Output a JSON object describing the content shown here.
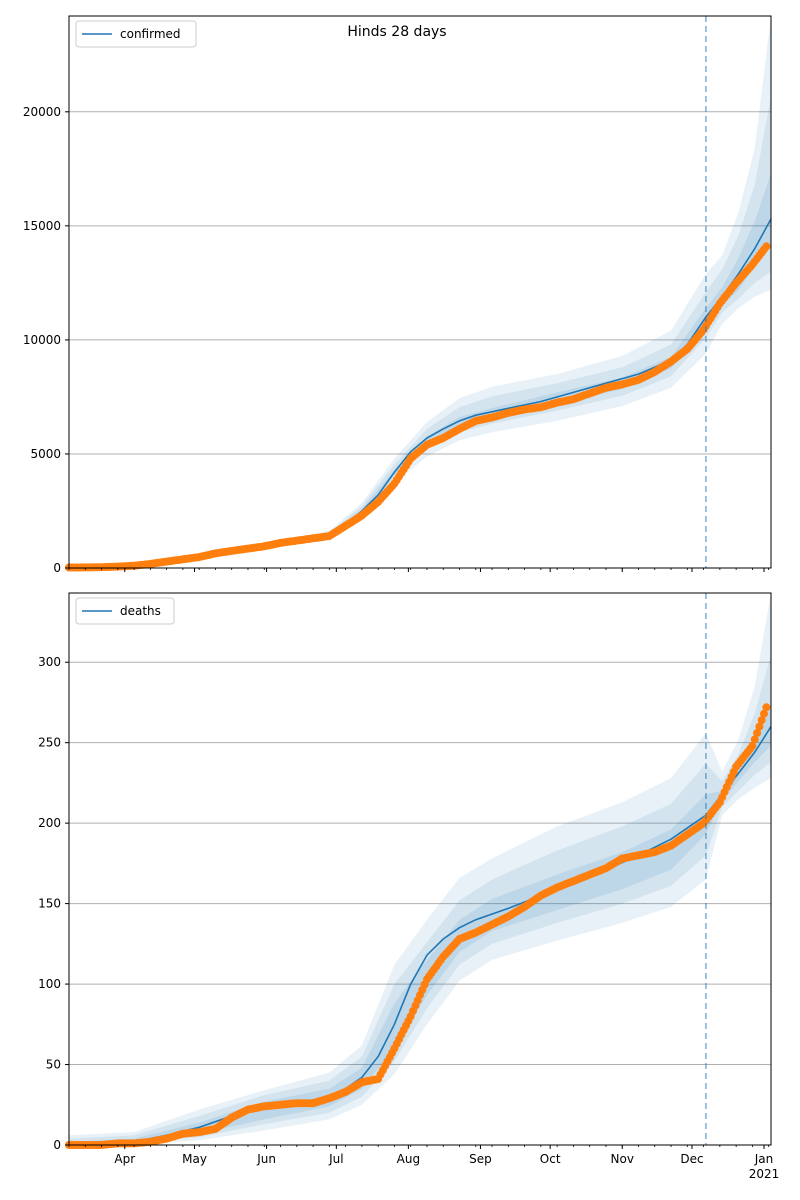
{
  "title": "Hinds 28 days",
  "forecast_start": "2020-12-07",
  "colors": {
    "model": "#1f77b4",
    "observed": "#ff7f0e",
    "band": "#1f77b4",
    "grid": "#b0b0b0"
  },
  "chart_data": [
    {
      "type": "line",
      "name": "confirmed",
      "legend": "confirmed",
      "legend_position": "top-left",
      "grid": "y",
      "x_range": [
        "2020-03-08",
        "2021-01-04"
      ],
      "ylim": [
        0,
        24200
      ],
      "yticks": [
        0,
        5000,
        10000,
        15000,
        20000
      ],
      "model_line": {
        "x": [
          "2020-03-08",
          "2020-03-22",
          "2020-04-05",
          "2020-04-19",
          "2020-05-03",
          "2020-05-17",
          "2020-05-31",
          "2020-06-14",
          "2020-06-28",
          "2020-07-05",
          "2020-07-12",
          "2020-07-19",
          "2020-07-26",
          "2020-08-02",
          "2020-08-09",
          "2020-08-16",
          "2020-08-23",
          "2020-08-30",
          "2020-09-13",
          "2020-09-27",
          "2020-10-11",
          "2020-10-25",
          "2020-11-08",
          "2020-11-22",
          "2020-11-29",
          "2020-12-07",
          "2020-12-14",
          "2020-12-21",
          "2020-12-28",
          "2021-01-04"
        ],
        "y": [
          20,
          30,
          80,
          260,
          480,
          700,
          920,
          1150,
          1450,
          1900,
          2500,
          3200,
          4200,
          5100,
          5700,
          6100,
          6450,
          6700,
          7000,
          7300,
          7700,
          8100,
          8500,
          9100,
          9800,
          11000,
          11900,
          12900,
          14000,
          15300
        ]
      },
      "bands": {
        "x": [
          "2020-03-08",
          "2020-04-05",
          "2020-05-03",
          "2020-05-31",
          "2020-06-28",
          "2020-07-12",
          "2020-07-26",
          "2020-08-09",
          "2020-08-23",
          "2020-09-06",
          "2020-10-04",
          "2020-11-01",
          "2020-11-22",
          "2020-12-07",
          "2020-12-14",
          "2020-12-21",
          "2020-12-28",
          "2021-01-04"
        ],
        "lower95": [
          0,
          60,
          420,
          830,
          1300,
          2200,
          3700,
          4900,
          5600,
          5950,
          6450,
          7100,
          7900,
          9400,
          10700,
          11400,
          11900,
          12200
        ],
        "lower80": [
          5,
          70,
          450,
          870,
          1360,
          2320,
          3960,
          5200,
          5950,
          6330,
          6900,
          7550,
          8400,
          10100,
          11200,
          11800,
          12500,
          13000
        ],
        "lower50": [
          12,
          75,
          465,
          900,
          1410,
          2420,
          4080,
          5420,
          6180,
          6590,
          7200,
          7850,
          8750,
          10600,
          11500,
          12200,
          13200,
          14200
        ],
        "upper50": [
          28,
          85,
          495,
          940,
          1490,
          2580,
          4320,
          5780,
          6620,
          7010,
          7700,
          8350,
          9250,
          11400,
          12300,
          13600,
          15200,
          17300
        ],
        "upper80": [
          40,
          95,
          515,
          980,
          1560,
          2720,
          4540,
          6100,
          7050,
          7530,
          8100,
          8800,
          9800,
          12100,
          13100,
          14600,
          16800,
          20700
        ],
        "upper95": [
          50,
          100,
          540,
          1020,
          1620,
          2860,
          4800,
          6400,
          7450,
          7950,
          8500,
          9300,
          10400,
          12900,
          13700,
          15600,
          18400,
          24200
        ]
      },
      "observed": {
        "x": [
          "2020-03-08",
          "2020-03-15",
          "2020-03-22",
          "2020-03-29",
          "2020-04-05",
          "2020-04-12",
          "2020-04-19",
          "2020-04-26",
          "2020-05-03",
          "2020-05-10",
          "2020-05-17",
          "2020-05-24",
          "2020-05-31",
          "2020-06-07",
          "2020-06-14",
          "2020-06-21",
          "2020-06-28",
          "2020-07-05",
          "2020-07-12",
          "2020-07-19",
          "2020-07-26",
          "2020-08-02",
          "2020-08-09",
          "2020-08-16",
          "2020-08-23",
          "2020-08-30",
          "2020-09-06",
          "2020-09-13",
          "2020-09-20",
          "2020-09-27",
          "2020-10-04",
          "2020-10-11",
          "2020-10-18",
          "2020-10-25",
          "2020-11-01",
          "2020-11-08",
          "2020-11-15",
          "2020-11-22",
          "2020-11-29",
          "2020-12-06",
          "2020-12-13",
          "2020-12-20",
          "2020-12-27",
          "2021-01-02"
        ],
        "y": [
          20,
          25,
          35,
          60,
          100,
          180,
          280,
          380,
          480,
          640,
          750,
          850,
          950,
          1100,
          1200,
          1300,
          1400,
          1850,
          2300,
          2900,
          3700,
          4800,
          5400,
          5700,
          6100,
          6450,
          6600,
          6800,
          6950,
          7050,
          7250,
          7400,
          7650,
          7900,
          8050,
          8250,
          8600,
          9050,
          9600,
          10450,
          11600,
          12500,
          13300,
          14100
        ]
      }
    },
    {
      "type": "line",
      "name": "deaths",
      "legend": "deaths",
      "legend_position": "top-left",
      "grid": "y",
      "x_range": [
        "2020-03-08",
        "2021-01-04"
      ],
      "ylim": [
        0,
        343
      ],
      "yticks": [
        0,
        50,
        100,
        150,
        200,
        250,
        300
      ],
      "xticks": [
        {
          "date": "2020-04-01",
          "label": "Apr"
        },
        {
          "date": "2020-05-01",
          "label": "May"
        },
        {
          "date": "2020-06-01",
          "label": "Jun"
        },
        {
          "date": "2020-07-01",
          "label": "Jul"
        },
        {
          "date": "2020-08-01",
          "label": "Aug"
        },
        {
          "date": "2020-09-01",
          "label": "Sep"
        },
        {
          "date": "2020-10-01",
          "label": "Oct"
        },
        {
          "date": "2020-11-01",
          "label": "Nov"
        },
        {
          "date": "2020-12-01",
          "label": "Dec"
        },
        {
          "date": "2021-01-01",
          "label": "Jan"
        }
      ],
      "year_label": "2021",
      "model_line": {
        "x": [
          "2020-03-08",
          "2020-03-22",
          "2020-04-05",
          "2020-04-19",
          "2020-05-03",
          "2020-05-17",
          "2020-05-31",
          "2020-06-14",
          "2020-06-28",
          "2020-07-05",
          "2020-07-12",
          "2020-07-19",
          "2020-07-26",
          "2020-08-02",
          "2020-08-09",
          "2020-08-16",
          "2020-08-23",
          "2020-08-30",
          "2020-09-13",
          "2020-09-27",
          "2020-10-11",
          "2020-10-25",
          "2020-11-08",
          "2020-11-22",
          "2020-12-07",
          "2020-12-14",
          "2020-12-21",
          "2020-12-28",
          "2021-01-04"
        ],
        "y": [
          0,
          0.5,
          2,
          6,
          11,
          18,
          23,
          26,
          30,
          35,
          42,
          55,
          75,
          100,
          118,
          128,
          135,
          140,
          147,
          155,
          163,
          171,
          180,
          190,
          205,
          218,
          231,
          244,
          260
        ]
      },
      "bands": {
        "x": [
          "2020-03-08",
          "2020-04-05",
          "2020-05-03",
          "2020-05-31",
          "2020-06-28",
          "2020-07-12",
          "2020-07-26",
          "2020-08-09",
          "2020-08-23",
          "2020-09-06",
          "2020-10-04",
          "2020-11-01",
          "2020-11-22",
          "2020-12-07",
          "2020-12-14",
          "2020-12-21",
          "2020-12-28",
          "2021-01-04"
        ],
        "lower95": [
          0,
          0,
          3,
          9,
          16,
          25,
          44,
          75,
          102,
          115,
          127,
          138,
          148,
          165,
          205,
          215,
          222,
          228
        ],
        "lower80": [
          0,
          1,
          5,
          13,
          20,
          30,
          52,
          85,
          112,
          125,
          138,
          150,
          161,
          180,
          210,
          220,
          230,
          238
        ],
        "lower50": [
          0,
          1.5,
          7,
          16,
          24,
          35,
          60,
          93,
          120,
          133,
          146,
          159,
          171,
          193,
          214,
          226,
          238,
          248
        ],
        "upper50": [
          2,
          4,
          14,
          27,
          35,
          48,
          88,
          115,
          140,
          153,
          168,
          182,
          196,
          218,
          220,
          234,
          252,
          272
        ],
        "upper80": [
          4,
          6,
          18,
          31,
          40,
          55,
          100,
          126,
          152,
          165,
          183,
          198,
          212,
          237,
          226,
          243,
          268,
          305
        ],
        "upper95": [
          6,
          8,
          22,
          34,
          45,
          62,
          112,
          140,
          166,
          178,
          198,
          213,
          228,
          256,
          232,
          252,
          285,
          343
        ]
      },
      "observed": {
        "x": [
          "2020-03-08",
          "2020-03-15",
          "2020-03-22",
          "2020-03-29",
          "2020-04-05",
          "2020-04-12",
          "2020-04-19",
          "2020-04-26",
          "2020-05-03",
          "2020-05-10",
          "2020-05-17",
          "2020-05-24",
          "2020-05-31",
          "2020-06-07",
          "2020-06-14",
          "2020-06-21",
          "2020-06-28",
          "2020-07-05",
          "2020-07-12",
          "2020-07-19",
          "2020-07-26",
          "2020-08-02",
          "2020-08-09",
          "2020-08-16",
          "2020-08-23",
          "2020-08-30",
          "2020-09-06",
          "2020-09-13",
          "2020-09-20",
          "2020-09-27",
          "2020-10-04",
          "2020-10-11",
          "2020-10-18",
          "2020-10-25",
          "2020-11-01",
          "2020-11-08",
          "2020-11-15",
          "2020-11-22",
          "2020-11-29",
          "2020-12-06",
          "2020-12-13",
          "2020-12-20",
          "2020-12-27",
          "2021-01-02"
        ],
        "y": [
          0,
          0,
          0,
          1,
          1,
          2,
          4,
          7,
          8,
          10,
          17,
          22,
          24,
          25,
          26,
          26,
          29,
          33,
          39,
          41,
          60,
          80,
          103,
          117,
          128,
          132,
          137,
          142,
          148,
          155,
          160,
          164,
          168,
          172,
          178,
          180,
          182,
          186,
          193,
          200,
          213,
          235,
          248,
          272
        ]
      }
    }
  ]
}
